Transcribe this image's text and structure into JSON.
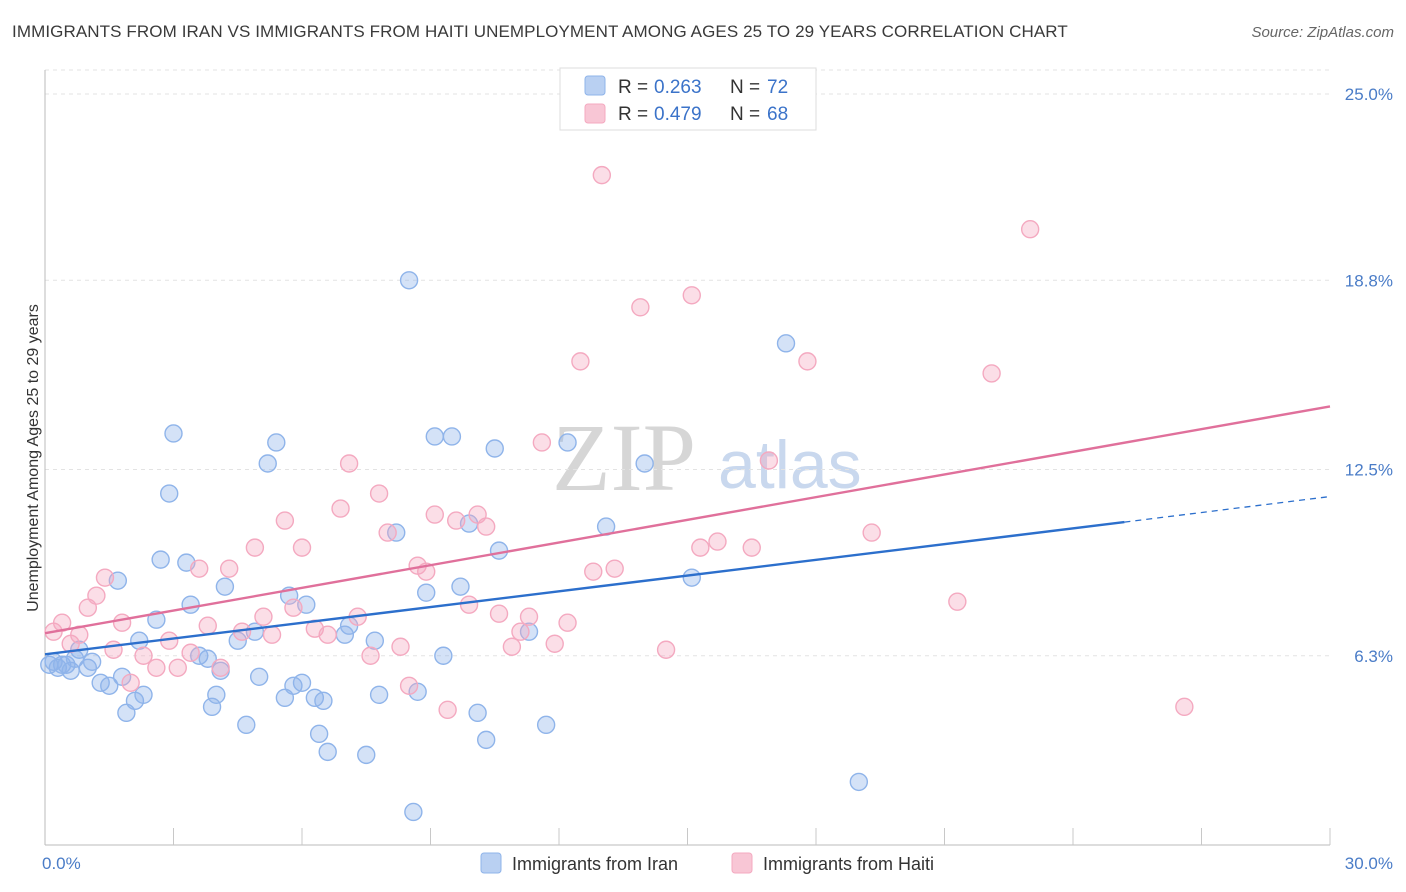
{
  "title": "IMMIGRANTS FROM IRAN VS IMMIGRANTS FROM HAITI UNEMPLOYMENT AMONG AGES 25 TO 29 YEARS CORRELATION CHART",
  "source": "Source: ZipAtlas.com",
  "watermark": {
    "zip": "ZIP",
    "atlas": "atlas"
  },
  "chart_data": {
    "type": "scatter",
    "title": "IMMIGRANTS FROM IRAN VS IMMIGRANTS FROM HAITI UNEMPLOYMENT AMONG AGES 25 TO 29 YEARS CORRELATION CHART",
    "ylabel": "Unemployment Among Ages 25 to 29 years",
    "xlim": [
      0,
      30
    ],
    "ylim": [
      0,
      25.8
    ],
    "x_tick_labels": {
      "min": "0.0%",
      "max": "30.0%"
    },
    "y_ticks": [
      {
        "value": 6.3,
        "label": "6.3%"
      },
      {
        "value": 12.5,
        "label": "12.5%"
      },
      {
        "value": 18.8,
        "label": "18.8%"
      },
      {
        "value": 25.0,
        "label": "25.0%"
      }
    ],
    "legend": {
      "r_label": "R = ",
      "n_label": "N = ",
      "entries": [
        {
          "r": "0.263",
          "n": "72"
        },
        {
          "r": "0.479",
          "n": "68"
        }
      ]
    },
    "series": [
      {
        "name": "Immigrants from Iran",
        "color": "#8fb4ea",
        "line_color": "#2c6fcc",
        "trend": {
          "x0": 0,
          "y0": 6.35,
          "x1": 25.2,
          "y1": 10.75,
          "dash_to_x": 30,
          "dash_to_y": 11.6
        },
        "points": [
          [
            0.1,
            6.0
          ],
          [
            0.2,
            6.1
          ],
          [
            0.3,
            5.9
          ],
          [
            0.4,
            6.0
          ],
          [
            0.5,
            6.0
          ],
          [
            0.6,
            5.8
          ],
          [
            0.7,
            6.2
          ],
          [
            0.8,
            6.5
          ],
          [
            1.0,
            5.9
          ],
          [
            1.1,
            6.1
          ],
          [
            1.3,
            5.4
          ],
          [
            1.5,
            5.3
          ],
          [
            1.7,
            8.8
          ],
          [
            1.9,
            4.4
          ],
          [
            1.8,
            5.6
          ],
          [
            2.1,
            4.8
          ],
          [
            2.2,
            6.8
          ],
          [
            2.3,
            5.0
          ],
          [
            2.6,
            7.5
          ],
          [
            2.7,
            9.5
          ],
          [
            2.9,
            11.7
          ],
          [
            3.0,
            13.7
          ],
          [
            3.3,
            9.4
          ],
          [
            3.4,
            8.0
          ],
          [
            3.6,
            6.3
          ],
          [
            3.8,
            6.2
          ],
          [
            3.9,
            4.6
          ],
          [
            4.0,
            5.0
          ],
          [
            4.1,
            5.8
          ],
          [
            4.2,
            8.6
          ],
          [
            4.5,
            6.8
          ],
          [
            4.7,
            4.0
          ],
          [
            4.9,
            7.1
          ],
          [
            5.0,
            5.6
          ],
          [
            5.2,
            12.7
          ],
          [
            5.4,
            13.4
          ],
          [
            5.6,
            4.9
          ],
          [
            5.7,
            8.3
          ],
          [
            5.8,
            5.3
          ],
          [
            6.0,
            5.4
          ],
          [
            6.1,
            8.0
          ],
          [
            6.3,
            4.9
          ],
          [
            6.4,
            3.7
          ],
          [
            6.5,
            4.8
          ],
          [
            6.6,
            3.1
          ],
          [
            7.0,
            7.0
          ],
          [
            7.1,
            7.3
          ],
          [
            7.5,
            3.0
          ],
          [
            7.7,
            6.8
          ],
          [
            7.8,
            5.0
          ],
          [
            8.2,
            10.4
          ],
          [
            8.5,
            18.8
          ],
          [
            8.6,
            1.1
          ],
          [
            8.7,
            5.1
          ],
          [
            8.9,
            8.4
          ],
          [
            9.1,
            13.6
          ],
          [
            9.3,
            6.3
          ],
          [
            9.5,
            13.6
          ],
          [
            9.7,
            8.6
          ],
          [
            9.9,
            10.7
          ],
          [
            10.1,
            4.4
          ],
          [
            10.3,
            3.5
          ],
          [
            10.5,
            13.2
          ],
          [
            10.6,
            9.8
          ],
          [
            11.3,
            7.1
          ],
          [
            11.7,
            4.0
          ],
          [
            12.2,
            13.4
          ],
          [
            13.1,
            10.6
          ],
          [
            14.0,
            12.7
          ],
          [
            15.1,
            8.9
          ],
          [
            17.3,
            16.7
          ],
          [
            19.0,
            2.1
          ]
        ]
      },
      {
        "name": "Immigrants from Haiti",
        "color": "#f4a9c0",
        "line_color": "#e0709b",
        "trend": {
          "x0": 0,
          "y0": 7.05,
          "x1": 30,
          "y1": 14.6
        },
        "points": [
          [
            0.2,
            7.1
          ],
          [
            0.4,
            7.4
          ],
          [
            0.6,
            6.7
          ],
          [
            0.8,
            7.0
          ],
          [
            1.0,
            7.9
          ],
          [
            1.2,
            8.3
          ],
          [
            1.4,
            8.9
          ],
          [
            1.6,
            6.5
          ],
          [
            1.8,
            7.4
          ],
          [
            2.0,
            5.4
          ],
          [
            2.3,
            6.3
          ],
          [
            2.6,
            5.9
          ],
          [
            2.9,
            6.8
          ],
          [
            3.1,
            5.9
          ],
          [
            3.4,
            6.4
          ],
          [
            3.6,
            9.2
          ],
          [
            3.8,
            7.3
          ],
          [
            4.1,
            5.9
          ],
          [
            4.3,
            9.2
          ],
          [
            4.6,
            7.1
          ],
          [
            4.9,
            9.9
          ],
          [
            5.1,
            7.6
          ],
          [
            5.3,
            7.0
          ],
          [
            5.6,
            10.8
          ],
          [
            5.8,
            7.9
          ],
          [
            6.0,
            9.9
          ],
          [
            6.3,
            7.2
          ],
          [
            6.6,
            7.0
          ],
          [
            6.9,
            11.2
          ],
          [
            7.1,
            12.7
          ],
          [
            7.3,
            7.6
          ],
          [
            7.6,
            6.3
          ],
          [
            7.8,
            11.7
          ],
          [
            8.0,
            10.4
          ],
          [
            8.3,
            6.6
          ],
          [
            8.5,
            5.3
          ],
          [
            8.7,
            9.3
          ],
          [
            8.9,
            9.1
          ],
          [
            9.1,
            11.0
          ],
          [
            9.4,
            4.5
          ],
          [
            9.6,
            10.8
          ],
          [
            9.9,
            8.0
          ],
          [
            10.1,
            11.0
          ],
          [
            10.3,
            10.6
          ],
          [
            10.6,
            7.7
          ],
          [
            10.9,
            6.6
          ],
          [
            11.1,
            7.1
          ],
          [
            11.3,
            7.6
          ],
          [
            11.6,
            13.4
          ],
          [
            11.9,
            6.7
          ],
          [
            12.2,
            7.4
          ],
          [
            12.5,
            16.1
          ],
          [
            12.8,
            9.1
          ],
          [
            13.0,
            22.3
          ],
          [
            13.3,
            9.2
          ],
          [
            13.9,
            17.9
          ],
          [
            14.5,
            6.5
          ],
          [
            15.1,
            18.3
          ],
          [
            15.3,
            9.9
          ],
          [
            15.7,
            10.1
          ],
          [
            16.5,
            9.9
          ],
          [
            16.9,
            12.8
          ],
          [
            17.8,
            16.1
          ],
          [
            19.3,
            10.4
          ],
          [
            21.3,
            8.1
          ],
          [
            22.1,
            15.7
          ],
          [
            23.0,
            20.5
          ],
          [
            26.6,
            4.6
          ]
        ]
      }
    ]
  },
  "bottom_legend": {
    "iran": "Immigrants from Iran",
    "haiti": "Immigrants from Haiti"
  }
}
